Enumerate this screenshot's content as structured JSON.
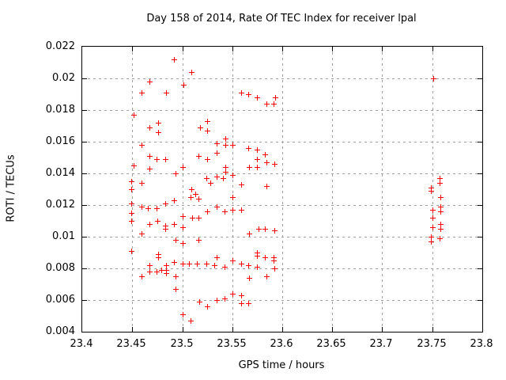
{
  "colors": {
    "marker": "#ff0000",
    "grid": "#a0a0a0",
    "axis": "#000000",
    "background": "#ffffff",
    "text": "#000000"
  },
  "chart_data": {
    "type": "scatter",
    "title": "Day 158 of 2014, Rate Of TEC Index for receiver lpal",
    "xlabel": "GPS time / hours",
    "ylabel": "ROTI / TECUs",
    "xlim": [
      23.4,
      23.8
    ],
    "ylim": [
      0.004,
      0.022
    ],
    "xticks": [
      "23.4",
      "23.45",
      "23.5",
      "23.55",
      "23.6",
      "23.65",
      "23.7",
      "23.75",
      "23.8"
    ],
    "yticks": [
      "0.004",
      "0.006",
      "0.008",
      "0.01",
      "0.012",
      "0.014",
      "0.016",
      "0.018",
      "0.02",
      "0.022"
    ],
    "grid": true,
    "legend_position": "none",
    "marker": "plus",
    "series": [
      {
        "name": "ROTI",
        "color": "#ff0000",
        "points": [
          [
            23.449,
            0.0091
          ],
          [
            23.449,
            0.011
          ],
          [
            23.449,
            0.0115
          ],
          [
            23.449,
            0.0121
          ],
          [
            23.449,
            0.013
          ],
          [
            23.449,
            0.0135
          ],
          [
            23.451,
            0.0145
          ],
          [
            23.451,
            0.0177
          ],
          [
            23.459,
            0.0075
          ],
          [
            23.459,
            0.0102
          ],
          [
            23.459,
            0.0119
          ],
          [
            23.459,
            0.0134
          ],
          [
            23.459,
            0.0158
          ],
          [
            23.459,
            0.0191
          ],
          [
            23.466,
            0.0118
          ],
          [
            23.467,
            0.0078
          ],
          [
            23.467,
            0.0082
          ],
          [
            23.467,
            0.0108
          ],
          [
            23.467,
            0.0143
          ],
          [
            23.467,
            0.0151
          ],
          [
            23.467,
            0.0169
          ],
          [
            23.467,
            0.0198
          ],
          [
            23.474,
            0.0078
          ],
          [
            23.474,
            0.0118
          ],
          [
            23.474,
            0.0149
          ],
          [
            23.475,
            0.011
          ],
          [
            23.476,
            0.0087
          ],
          [
            23.476,
            0.0089
          ],
          [
            23.476,
            0.0166
          ],
          [
            23.476,
            0.0172
          ],
          [
            23.479,
            0.0079
          ],
          [
            23.483,
            0.0105
          ],
          [
            23.483,
            0.0107
          ],
          [
            23.483,
            0.0121
          ],
          [
            23.483,
            0.0149
          ],
          [
            23.484,
            0.0077
          ],
          [
            23.484,
            0.0079
          ],
          [
            23.484,
            0.0082
          ],
          [
            23.484,
            0.0191
          ],
          [
            23.492,
            0.0084
          ],
          [
            23.492,
            0.0108
          ],
          [
            23.492,
            0.0123
          ],
          [
            23.492,
            0.0212
          ],
          [
            23.493,
            0.0067
          ],
          [
            23.493,
            0.0075
          ],
          [
            23.493,
            0.0098
          ],
          [
            23.493,
            0.014
          ],
          [
            23.5,
            0.0051
          ],
          [
            23.5,
            0.0083
          ],
          [
            23.5,
            0.0096
          ],
          [
            23.5,
            0.0106
          ],
          [
            23.5,
            0.0113
          ],
          [
            23.5,
            0.0144
          ],
          [
            23.501,
            0.0196
          ],
          [
            23.507,
            0.0083
          ],
          [
            23.508,
            0.0047
          ],
          [
            23.508,
            0.0125
          ],
          [
            23.509,
            0.013
          ],
          [
            23.509,
            0.0204
          ],
          [
            23.51,
            0.0112
          ],
          [
            23.513,
            0.0127
          ],
          [
            23.515,
            0.0083
          ],
          [
            23.516,
            0.0098
          ],
          [
            23.516,
            0.0112
          ],
          [
            23.516,
            0.0124
          ],
          [
            23.516,
            0.0151
          ],
          [
            23.517,
            0.0059
          ],
          [
            23.518,
            0.0169
          ],
          [
            23.524,
            0.0083
          ],
          [
            23.524,
            0.0137
          ],
          [
            23.525,
            0.0056
          ],
          [
            23.525,
            0.0116
          ],
          [
            23.525,
            0.0149
          ],
          [
            23.525,
            0.0167
          ],
          [
            23.525,
            0.0173
          ],
          [
            23.528,
            0.0134
          ],
          [
            23.532,
            0.0082
          ],
          [
            23.534,
            0.006
          ],
          [
            23.534,
            0.0087
          ],
          [
            23.534,
            0.0119
          ],
          [
            23.534,
            0.0138
          ],
          [
            23.534,
            0.0153
          ],
          [
            23.534,
            0.0159
          ],
          [
            23.541,
            0.0137
          ],
          [
            23.542,
            0.0061
          ],
          [
            23.542,
            0.0081
          ],
          [
            23.542,
            0.0116
          ],
          [
            23.543,
            0.0141
          ],
          [
            23.543,
            0.0144
          ],
          [
            23.543,
            0.0158
          ],
          [
            23.543,
            0.0162
          ],
          [
            23.55,
            0.0064
          ],
          [
            23.55,
            0.0085
          ],
          [
            23.55,
            0.0117
          ],
          [
            23.55,
            0.0125
          ],
          [
            23.55,
            0.0139
          ],
          [
            23.55,
            0.0158
          ],
          [
            23.559,
            0.0058
          ],
          [
            23.559,
            0.0063
          ],
          [
            23.559,
            0.0083
          ],
          [
            23.559,
            0.0117
          ],
          [
            23.559,
            0.0133
          ],
          [
            23.559,
            0.0191
          ],
          [
            23.566,
            0.0058
          ],
          [
            23.566,
            0.0082
          ],
          [
            23.566,
            0.0156
          ],
          [
            23.566,
            0.019
          ],
          [
            23.567,
            0.0074
          ],
          [
            23.567,
            0.0102
          ],
          [
            23.567,
            0.0144
          ],
          [
            23.575,
            0.0081
          ],
          [
            23.575,
            0.0088
          ],
          [
            23.575,
            0.009
          ],
          [
            23.575,
            0.0144
          ],
          [
            23.575,
            0.0149
          ],
          [
            23.575,
            0.0155
          ],
          [
            23.575,
            0.0188
          ],
          [
            23.576,
            0.0105
          ],
          [
            23.583,
            0.0087
          ],
          [
            23.583,
            0.0105
          ],
          [
            23.583,
            0.0152
          ],
          [
            23.584,
            0.0075
          ],
          [
            23.584,
            0.0132
          ],
          [
            23.584,
            0.0147
          ],
          [
            23.584,
            0.0184
          ],
          [
            23.591,
            0.0085
          ],
          [
            23.591,
            0.0087
          ],
          [
            23.591,
            0.0184
          ],
          [
            23.592,
            0.008
          ],
          [
            23.592,
            0.0104
          ],
          [
            23.592,
            0.0146
          ],
          [
            23.593,
            0.0188
          ],
          [
            23.749,
            0.0097
          ],
          [
            23.749,
            0.01
          ],
          [
            23.749,
            0.0129
          ],
          [
            23.749,
            0.0131
          ],
          [
            23.75,
            0.0106
          ],
          [
            23.75,
            0.0112
          ],
          [
            23.75,
            0.0117
          ],
          [
            23.751,
            0.02
          ],
          [
            23.757,
            0.0099
          ],
          [
            23.757,
            0.0134
          ],
          [
            23.757,
            0.0137
          ],
          [
            23.758,
            0.0105
          ],
          [
            23.758,
            0.0108
          ],
          [
            23.758,
            0.0116
          ],
          [
            23.758,
            0.0119
          ],
          [
            23.758,
            0.0125
          ]
        ]
      }
    ]
  }
}
